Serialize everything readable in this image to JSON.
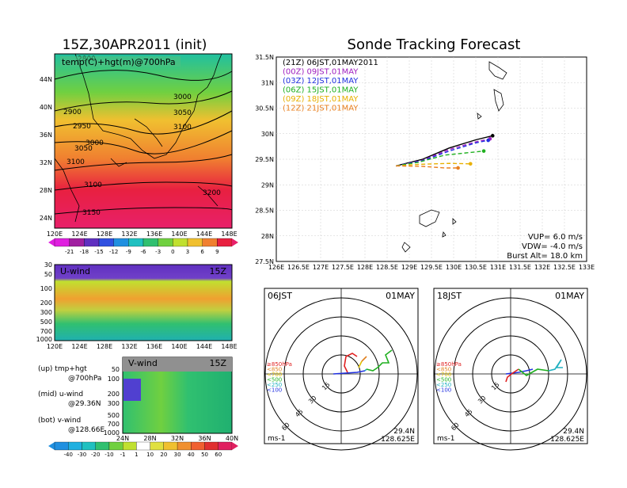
{
  "header": {
    "left_title": "15Z,30APR2011 (init)",
    "right_title": "Sonde Tracking Forecast"
  },
  "map_panel": {
    "label": "temp(C)+hgt(m)@700hPa",
    "lat_ticks": [
      "44N",
      "40N",
      "36N",
      "32N",
      "28N",
      "24N"
    ],
    "lon_ticks": [
      "120E",
      "124E",
      "128E",
      "132E",
      "136E",
      "140E",
      "144E",
      "148E"
    ],
    "contour_labels": [
      "2800",
      "2900",
      "2950",
      "3000",
      "3050",
      "3100",
      "3000",
      "3050",
      "3100",
      "3050",
      "3100",
      "3150",
      "3200"
    ],
    "colorbar_ticks": [
      "-21",
      "-18",
      "-15",
      "-12",
      "-9",
      "-6",
      "-3",
      "0",
      "3",
      "6",
      "9"
    ]
  },
  "uwind_panel": {
    "label": "U-wind",
    "time": "15Z",
    "pressure_ticks": [
      "30",
      "50",
      "100",
      "200",
      "300",
      "500",
      "700",
      "1000"
    ],
    "lon_ticks": [
      "120E",
      "124E",
      "128E",
      "132E",
      "136E",
      "140E",
      "144E",
      "148E"
    ]
  },
  "vwind_panel": {
    "label": "V-wind",
    "time": "15Z",
    "pressure_ticks": [
      "50",
      "100",
      "200",
      "300",
      "500",
      "700",
      "1000"
    ],
    "lat_ticks": [
      "24N",
      "28N",
      "32N",
      "36N",
      "40N"
    ],
    "colorbar_ticks": [
      "-40",
      "-30",
      "-20",
      "-10",
      "-1",
      "1",
      "10",
      "20",
      "30",
      "40",
      "50",
      "60"
    ]
  },
  "legend_notes": {
    "up": "(up) tmp+hgt",
    "up2": "@700hPa",
    "mid": "(mid) u-wind",
    "mid2": "@29.36N",
    "bot": "(bot) v-wind",
    "bot2": "@128.66E"
  },
  "track_panel": {
    "lat_ticks": [
      "31.5N",
      "31N",
      "30.5N",
      "30N",
      "29.5N",
      "29N",
      "28.5N",
      "28N",
      "27.5N"
    ],
    "lon_ticks": [
      "126E",
      "126.5E",
      "127E",
      "127.5E",
      "128E",
      "128.5E",
      "129E",
      "129.5E",
      "130E",
      "130.5E",
      "131E",
      "131.5E",
      "132E",
      "132.5E",
      "133E"
    ],
    "legend": [
      {
        "text": "(21Z)  06JST,01MAY2011",
        "color": "#000000"
      },
      {
        "text": "(00Z)  09JST,01MAY",
        "color": "#a020c0"
      },
      {
        "text": "(03Z)  12JST,01MAY",
        "color": "#2030e0"
      },
      {
        "text": "(06Z)  15JST,01MAY",
        "color": "#20b020"
      },
      {
        "text": "(09Z)  18JST,01MAY",
        "color": "#e8b000"
      },
      {
        "text": "(12Z)  21JST,01MAY",
        "color": "#e88020"
      }
    ],
    "params": {
      "vup": "VUP=  6.0  m/s",
      "vdw": "VDW= -4.0  m/s",
      "burst": "Burst Alt=  18.0  km"
    }
  },
  "hodographs": [
    {
      "time": "06JST",
      "date": "01MAY",
      "lat": "29.4N",
      "lon": "128.625E",
      "unit": "ms-1",
      "rings": [
        "15",
        "30",
        "45",
        "60"
      ],
      "levels": [
        {
          "text": "≥850hPa",
          "color": "#e02020"
        },
        {
          "text": "<850",
          "color": "#e08020"
        },
        {
          "text": "<700",
          "color": "#e0c000"
        },
        {
          "text": "<500",
          "color": "#20b020"
        },
        {
          "text": "<250",
          "color": "#20b0c0"
        },
        {
          "text": "<100",
          "color": "#2030e0"
        }
      ]
    },
    {
      "time": "18JST",
      "date": "01MAY",
      "lat": "29.4N",
      "lon": "128.625E",
      "unit": "ms-1",
      "rings": [
        "15",
        "30",
        "45",
        "60"
      ],
      "levels": [
        {
          "text": "≥850hPa",
          "color": "#e02020"
        },
        {
          "text": "<850",
          "color": "#e08020"
        },
        {
          "text": "<700",
          "color": "#e0c000"
        },
        {
          "text": "<500",
          "color": "#20b020"
        },
        {
          "text": "<250",
          "color": "#20b0c0"
        },
        {
          "text": "<100",
          "color": "#2030e0"
        }
      ]
    }
  ],
  "chart_data": [
    {
      "type": "heatmap",
      "title": "temp(C)+hgt(m)@700hPa",
      "xlim": [
        120,
        150
      ],
      "ylim": [
        22,
        48
      ],
      "color_levels": [
        -21,
        -18,
        -15,
        -12,
        -9,
        -6,
        -3,
        0,
        3,
        6,
        9
      ],
      "colors": [
        "#a020a0",
        "#6030c0",
        "#3050e0",
        "#2090e0",
        "#20c0c0",
        "#30c070",
        "#70d040",
        "#c0e030",
        "#f0c030",
        "#f08030",
        "#e82040"
      ]
    },
    {
      "type": "line",
      "title": "Sonde Tracking Forecast",
      "xlim": [
        126,
        133
      ],
      "ylim": [
        27.5,
        31.5
      ],
      "series": [
        {
          "name": "(21Z)  06JST,01MAY2011",
          "x": [
            128.7,
            129.3,
            129.9,
            130.5,
            130.88
          ],
          "y": [
            29.37,
            29.5,
            29.72,
            29.88,
            29.96
          ]
        },
        {
          "name": "(00Z)  09JST,01MAY",
          "x": [
            128.7,
            129.3,
            129.9,
            130.5,
            130.82
          ],
          "y": [
            29.37,
            29.48,
            29.69,
            29.84,
            29.9
          ]
        },
        {
          "name": "(03Z)  12JST,01MAY",
          "x": [
            128.7,
            129.3,
            129.9,
            130.5,
            130.78
          ],
          "y": [
            29.37,
            29.47,
            29.66,
            29.82,
            29.87
          ]
        },
        {
          "name": "(06Z)  15JST,01MAY",
          "x": [
            128.7,
            129.2,
            129.8,
            130.68
          ],
          "y": [
            29.37,
            29.44,
            29.58,
            29.66
          ]
        },
        {
          "name": "(09Z)  18JST,01MAY",
          "x": [
            128.7,
            129.2,
            129.9,
            130.38
          ],
          "y": [
            29.37,
            29.4,
            29.42,
            29.41
          ]
        },
        {
          "name": "(12Z)  21JST,01MAY",
          "x": [
            128.7,
            129.3,
            129.8,
            130.1
          ],
          "y": [
            29.37,
            29.36,
            29.33,
            29.33
          ]
        }
      ]
    }
  ]
}
